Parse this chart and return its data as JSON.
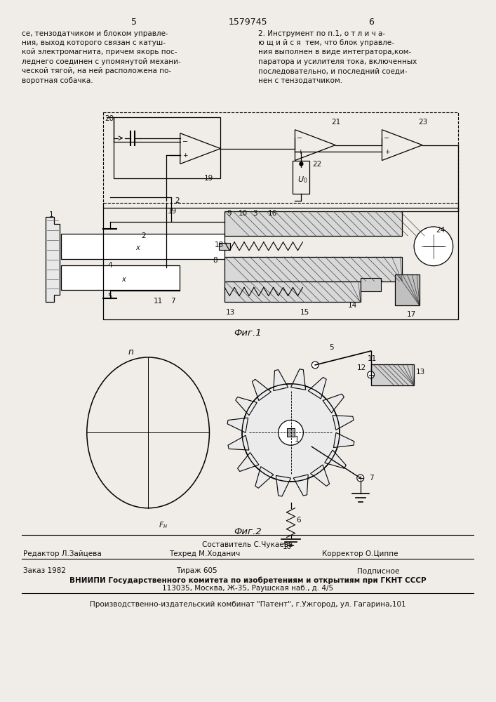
{
  "page_width": 7.07,
  "page_height": 10.0,
  "bg_color": "#f0ede8",
  "header_num_left": "5",
  "header_center": "1579745",
  "header_num_right": "6",
  "col_left_text": [
    "се, тензодатчиком и блоком управле-",
    "ния, выход которого связан с катуш-",
    "кой электромагнита, причем якорь пос-",
    "леднего соединен с упомянутой механи-",
    "ческой тягой, на ней расположена по-",
    "воротная собачка."
  ],
  "col_right_text": [
    "2. Инструмент по п.1, о т л и ч а-",
    "ю щ и й с я  тем, что блок управле-",
    "ния выполнен в виде интегратора,ком-",
    "паратора и усилителя тока, включенных",
    "последовательно, и последний соеди-",
    "нен с тензодатчиком."
  ],
  "fig1_label": "Фиг.1",
  "fig2_label": "Фиг.2",
  "bottom_composer": "Составитель С.Чукаева",
  "bottom_editor": "Редактор Л.Зайцева",
  "bottom_tech": "Техред М.Ходанич",
  "bottom_corrector": "Корректор О.Циппе",
  "bottom_order": "Заказ 1982",
  "bottom_tirazh": "Тираж 605",
  "bottom_podpisnoe": "Подписное",
  "bottom_vniip1": "ВНИИПИ Государственного комитета по изобретениям и открытиям при ГКНТ СССР",
  "bottom_vniip2": "113035, Москва, Ж-35, Раушская наб., д. 4/5",
  "bottom_patent": "Производственно-издательский комбинат \"Патент\", г.Ужгород, ул. Гагарина,101"
}
